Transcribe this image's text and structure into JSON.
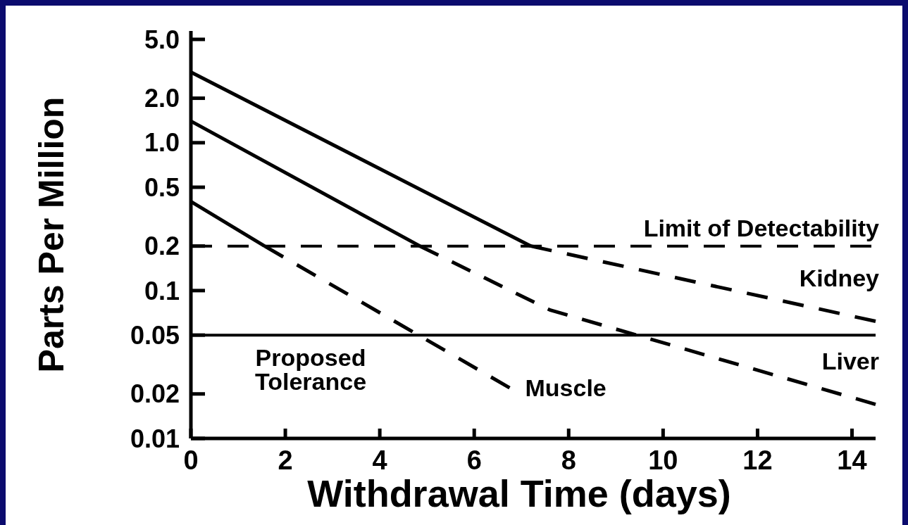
{
  "chart_data": {
    "type": "line",
    "xlabel": "Withdrawal Time (days)",
    "ylabel": "Parts Per Million",
    "log": "y",
    "xlim": [
      0,
      14.5
    ],
    "xticks": [
      0,
      2,
      4,
      6,
      8,
      10,
      12,
      14
    ],
    "ylim": [
      0.01,
      5.7
    ],
    "yticks": [
      {
        "value": 5,
        "label": "5.0"
      },
      {
        "value": 2,
        "label": "2.0"
      },
      {
        "value": 1,
        "label": "1.0"
      },
      0.5,
      0.2,
      0.1,
      0.05,
      0.02,
      0.01
    ],
    "grid": false,
    "marker": "none",
    "series": [
      {
        "color": "#000000",
        "line_style": "solid",
        "x": [
          0,
          7.2
        ],
        "values": [
          3.0,
          0.2
        ]
      },
      {
        "name": "Kidney",
        "color": "#000000",
        "line_style": "dashed",
        "x": [
          7.2,
          14.5
        ],
        "values": [
          0.2,
          0.062
        ]
      },
      {
        "color": "#000000",
        "line_style": "solid",
        "x": [
          0,
          4.85
        ],
        "values": [
          1.4,
          0.2
        ]
      },
      {
        "name": "Liver",
        "color": "#000000",
        "line_style": "dashed",
        "x": [
          4.85,
          7.6,
          14.5
        ],
        "values": [
          0.2,
          0.074,
          0.017
        ]
      },
      {
        "color": "#000000",
        "line_style": "solid",
        "x": [
          0,
          1.56
        ],
        "values": [
          0.4,
          0.2
        ]
      },
      {
        "name": "Muscle",
        "color": "#000000",
        "line_style": "dashed",
        "x": [
          1.56,
          6.75
        ],
        "values": [
          0.2,
          0.022
        ]
      }
    ],
    "ref_lines": [
      {
        "axis": "y",
        "value": 0.2,
        "label": "Limit of Detectability",
        "line_style": "dashed",
        "color": "#000000"
      },
      {
        "axis": "y",
        "value": 0.05,
        "label": "Proposed Tolerance",
        "line_style": "solid",
        "color": "#000000"
      }
    ]
  }
}
